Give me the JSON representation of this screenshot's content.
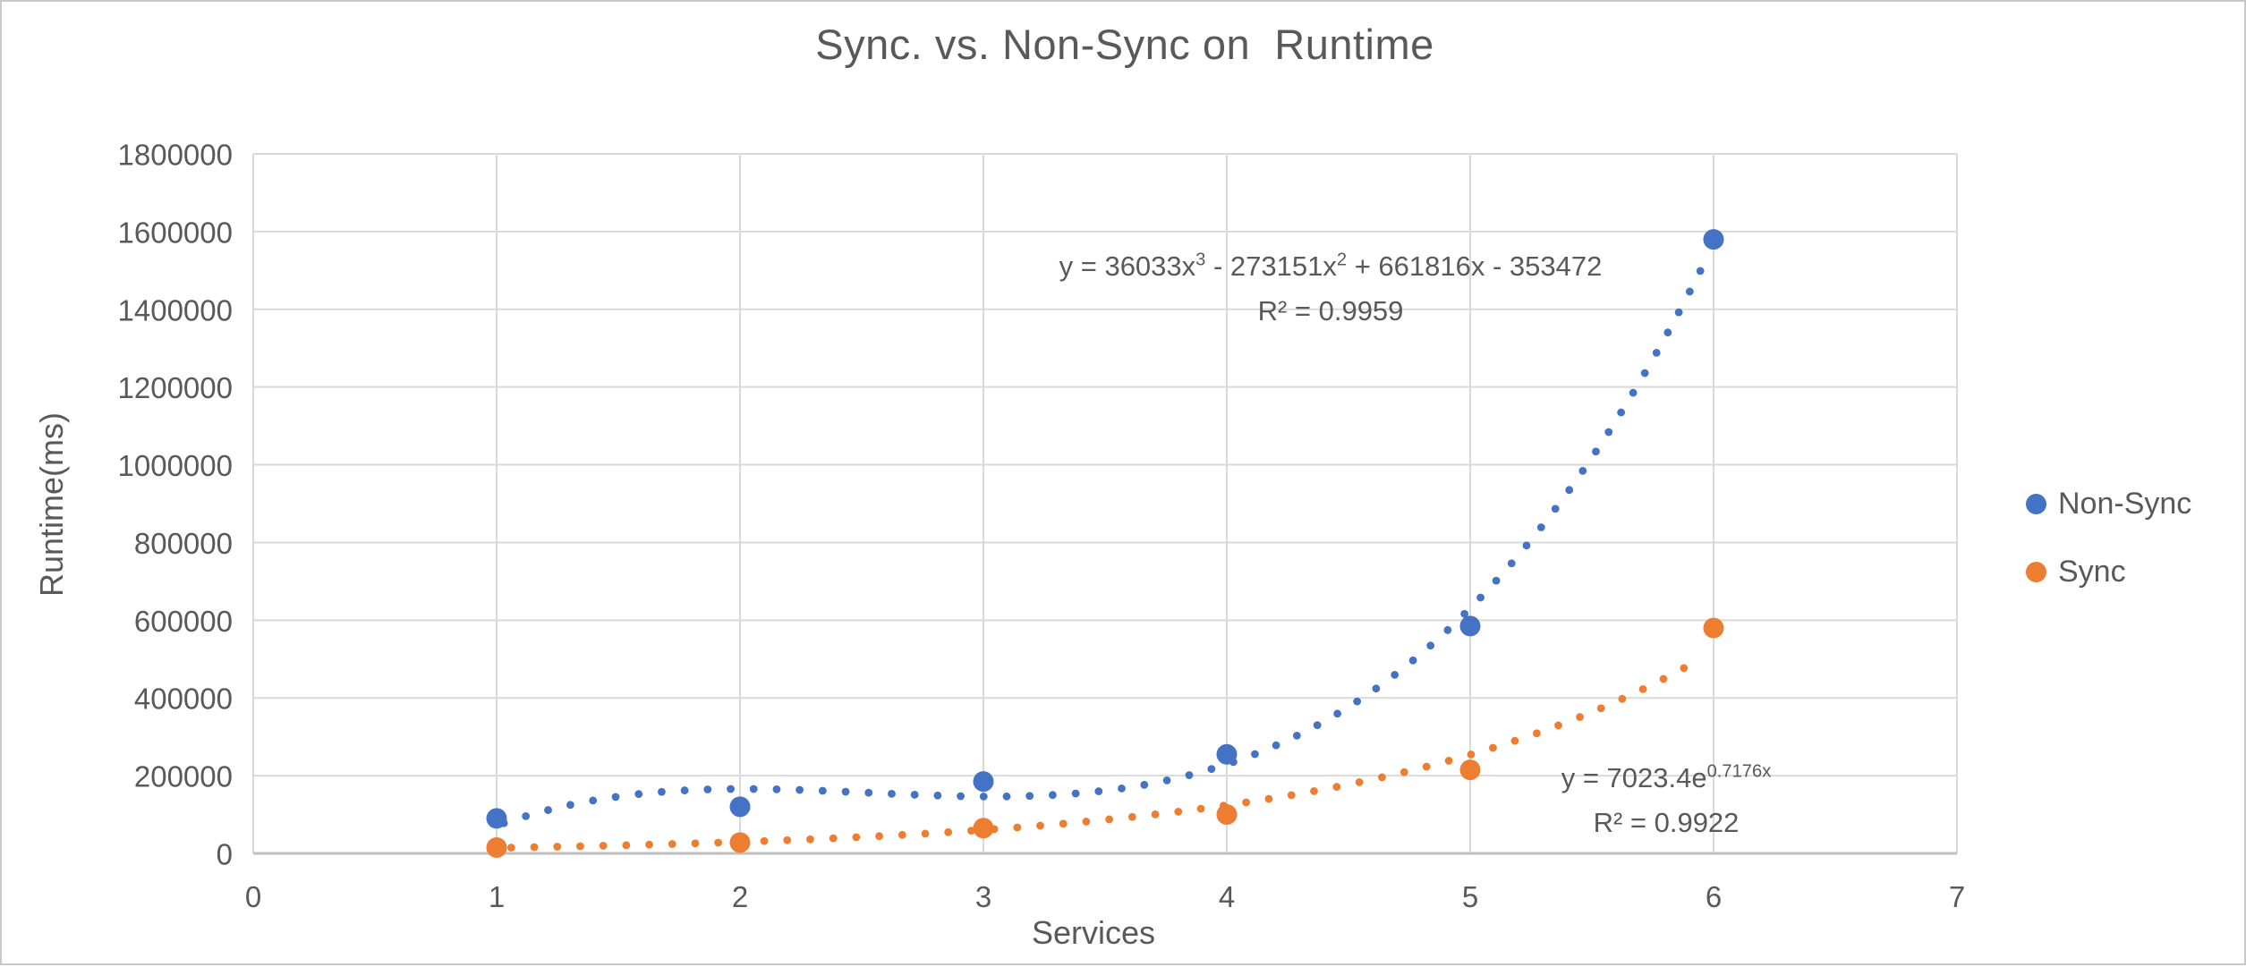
{
  "chart_data": {
    "type": "scatter",
    "title": "Sync. vs. Non-Sync on  Runtime",
    "xlabel": "Services",
    "ylabel": "Runtime(ms)",
    "xlim": [
      0,
      7
    ],
    "xticks": [
      0,
      1,
      2,
      3,
      4,
      5,
      6,
      7
    ],
    "ylim": [
      0,
      1800000
    ],
    "ytick_step": 200000,
    "yticks": [
      0,
      200000,
      400000,
      600000,
      800000,
      1000000,
      1200000,
      1400000,
      1600000,
      1800000
    ],
    "grid": true,
    "legend_position": "right",
    "colors": {
      "non_sync": "#4472C4",
      "sync": "#ED7D31",
      "text": "#595959",
      "gridline": "#D9D9D9",
      "axis_line": "#BFBFBF"
    },
    "series": [
      {
        "name": "Non-Sync",
        "color": "#4472C4",
        "x": [
          1,
          2,
          3,
          4,
          5,
          6
        ],
        "y": [
          90000,
          120000,
          185000,
          255000,
          585000,
          1580000
        ],
        "trendline": {
          "type": "polynomial",
          "degree": 3,
          "coeffs": [
            36033,
            -273151,
            661816,
            -353472
          ],
          "style": "dotted",
          "x_range": [
            1.03,
            5.97
          ],
          "equation_segments": [
            [
              "y = 36033x",
              false
            ],
            [
              "3",
              true
            ],
            [
              " - 273151x",
              false
            ],
            [
              "2",
              true
            ],
            [
              " + 661816x - 353472",
              false
            ]
          ],
          "r2_label": "R² = 0.9959"
        }
      },
      {
        "name": "Sync",
        "color": "#ED7D31",
        "x": [
          1,
          2,
          3,
          4,
          5,
          6
        ],
        "y": [
          15000,
          28000,
          65000,
          100000,
          215000,
          580000
        ],
        "trendline": {
          "type": "exponential",
          "a": 7023.4,
          "b": 0.7176,
          "style": "dotted",
          "x_range": [
            1.06,
            5.93
          ],
          "equation_segments": [
            [
              "y = 7023.4e",
              false
            ],
            [
              "0.7176x",
              true
            ]
          ],
          "r2_label": "R² = 0.9922"
        }
      }
    ],
    "legend": [
      "Non-Sync",
      "Sync"
    ]
  }
}
